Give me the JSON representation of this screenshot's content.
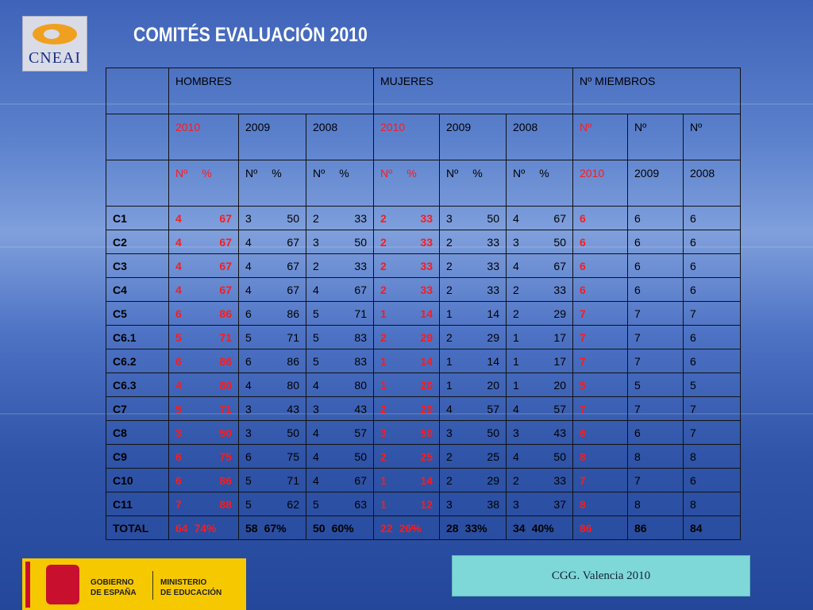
{
  "logo": "CNEAI",
  "title": "COMITÉS EVALUACIÓN 2010",
  "table": {
    "groups": [
      "HOMBRES",
      "MUJERES",
      "Nº MIEMBROS"
    ],
    "years": [
      "2010",
      "2009",
      "2008",
      "2010",
      "2009",
      "2008",
      "Nº",
      "Nº",
      "Nº"
    ],
    "subheads": [
      [
        "Nº",
        "%"
      ],
      [
        "Nº",
        "%"
      ],
      [
        "Nº",
        "%"
      ],
      [
        "Nº",
        "%"
      ],
      [
        "Nº",
        "%"
      ],
      [
        "Nº",
        "%"
      ]
    ],
    "member_years": [
      "2010",
      "2009",
      "2008"
    ],
    "rows": [
      {
        "label": "C1",
        "pairs": [
          [
            4,
            67
          ],
          [
            3,
            50
          ],
          [
            2,
            33
          ],
          [
            2,
            33
          ],
          [
            3,
            50
          ],
          [
            4,
            67
          ]
        ],
        "members": [
          6,
          6,
          6
        ]
      },
      {
        "label": "C2",
        "pairs": [
          [
            4,
            67
          ],
          [
            4,
            67
          ],
          [
            3,
            50
          ],
          [
            2,
            33
          ],
          [
            2,
            33
          ],
          [
            3,
            50
          ]
        ],
        "members": [
          6,
          6,
          6
        ]
      },
      {
        "label": "C3",
        "pairs": [
          [
            4,
            67
          ],
          [
            4,
            67
          ],
          [
            2,
            33
          ],
          [
            2,
            33
          ],
          [
            2,
            33
          ],
          [
            4,
            67
          ]
        ],
        "members": [
          6,
          6,
          6
        ]
      },
      {
        "label": "C4",
        "pairs": [
          [
            4,
            67
          ],
          [
            4,
            67
          ],
          [
            4,
            67
          ],
          [
            2,
            33
          ],
          [
            2,
            33
          ],
          [
            2,
            33
          ]
        ],
        "members": [
          6,
          6,
          6
        ]
      },
      {
        "label": "C5",
        "pairs": [
          [
            6,
            86
          ],
          [
            6,
            86
          ],
          [
            5,
            71
          ],
          [
            1,
            14
          ],
          [
            1,
            14
          ],
          [
            2,
            29
          ]
        ],
        "members": [
          7,
          7,
          7
        ]
      },
      {
        "label": "C6.1",
        "pairs": [
          [
            5,
            71
          ],
          [
            5,
            71
          ],
          [
            5,
            83
          ],
          [
            2,
            29
          ],
          [
            2,
            29
          ],
          [
            1,
            17
          ]
        ],
        "members": [
          7,
          7,
          6
        ]
      },
      {
        "label": "C6.2",
        "pairs": [
          [
            6,
            86
          ],
          [
            6,
            86
          ],
          [
            5,
            83
          ],
          [
            1,
            14
          ],
          [
            1,
            14
          ],
          [
            1,
            17
          ]
        ],
        "members": [
          7,
          7,
          6
        ]
      },
      {
        "label": "C6.3",
        "pairs": [
          [
            4,
            80
          ],
          [
            4,
            80
          ],
          [
            4,
            80
          ],
          [
            1,
            20
          ],
          [
            1,
            20
          ],
          [
            1,
            20
          ]
        ],
        "members": [
          5,
          5,
          5
        ]
      },
      {
        "label": "C7",
        "pairs": [
          [
            5,
            71
          ],
          [
            3,
            43
          ],
          [
            3,
            43
          ],
          [
            2,
            29
          ],
          [
            4,
            57
          ],
          [
            4,
            57
          ]
        ],
        "members": [
          7,
          7,
          7
        ]
      },
      {
        "label": "C8",
        "pairs": [
          [
            3,
            50
          ],
          [
            3,
            50
          ],
          [
            4,
            57
          ],
          [
            3,
            50
          ],
          [
            3,
            50
          ],
          [
            3,
            43
          ]
        ],
        "members": [
          6,
          6,
          7
        ]
      },
      {
        "label": "C9",
        "pairs": [
          [
            6,
            75
          ],
          [
            6,
            75
          ],
          [
            4,
            50
          ],
          [
            2,
            25
          ],
          [
            2,
            25
          ],
          [
            4,
            50
          ]
        ],
        "members": [
          8,
          8,
          8
        ]
      },
      {
        "label": "C10",
        "pairs": [
          [
            6,
            86
          ],
          [
            5,
            71
          ],
          [
            4,
            67
          ],
          [
            1,
            14
          ],
          [
            2,
            29
          ],
          [
            2,
            33
          ]
        ],
        "members": [
          7,
          7,
          6
        ]
      },
      {
        "label": "C11",
        "pairs": [
          [
            7,
            88
          ],
          [
            5,
            62
          ],
          [
            5,
            63
          ],
          [
            1,
            12
          ],
          [
            3,
            38
          ],
          [
            3,
            37
          ]
        ],
        "members": [
          8,
          8,
          8
        ]
      },
      {
        "label": "TOTAL",
        "pairs": [
          [
            "64",
            "74%"
          ],
          [
            "58",
            "67%"
          ],
          [
            "50",
            "60%"
          ],
          [
            "22",
            "26%"
          ],
          [
            "28",
            "33%"
          ],
          [
            "34",
            "40%"
          ]
        ],
        "members": [
          86,
          86,
          84
        ]
      }
    ]
  },
  "footer": {
    "ministry_left": [
      "GOBIERNO",
      "DE ESPAÑA"
    ],
    "ministry_right": [
      "MINISTERIO",
      "DE EDUCACIÓN"
    ],
    "note": "CGG. Valencia 2010"
  }
}
